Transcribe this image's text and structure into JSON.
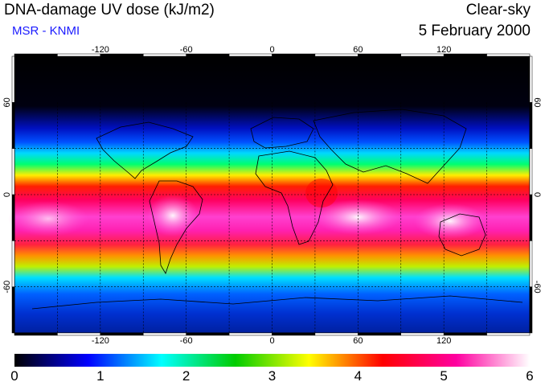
{
  "header": {
    "title": "DNA-damage UV dose (kJ/m2)",
    "subtitle": "MSR - KNMI",
    "sky_condition": "Clear-sky",
    "date": "5 February 2000"
  },
  "map": {
    "projection": "equirectangular",
    "lon_range": [
      -180,
      180
    ],
    "lat_range": [
      -90,
      90
    ],
    "lon_ticks": [
      "-120",
      "-60",
      "0",
      "60",
      "120"
    ],
    "lat_ticks": [
      "60",
      "0",
      "-60"
    ],
    "grid_style": "dashed",
    "coastlines": true,
    "field": "DNA-damage UV dose",
    "field_units": "kJ/m2",
    "field_description": "Zonal bands: near zero over the Arctic, rising through green at northern mid-latitudes, red at the equator, highest (white/magenta) over 0-30S, falling to blue around Antarctica."
  },
  "colorbar": {
    "min": 0,
    "max": 6,
    "labels": [
      "0",
      "1",
      "2",
      "3",
      "4",
      "5",
      "6"
    ],
    "colors": [
      "#000000",
      "#0000ff",
      "#00ffff",
      "#00cc00",
      "#ffff00",
      "#ff0000",
      "#ff00a0",
      "#ffffff"
    ]
  }
}
